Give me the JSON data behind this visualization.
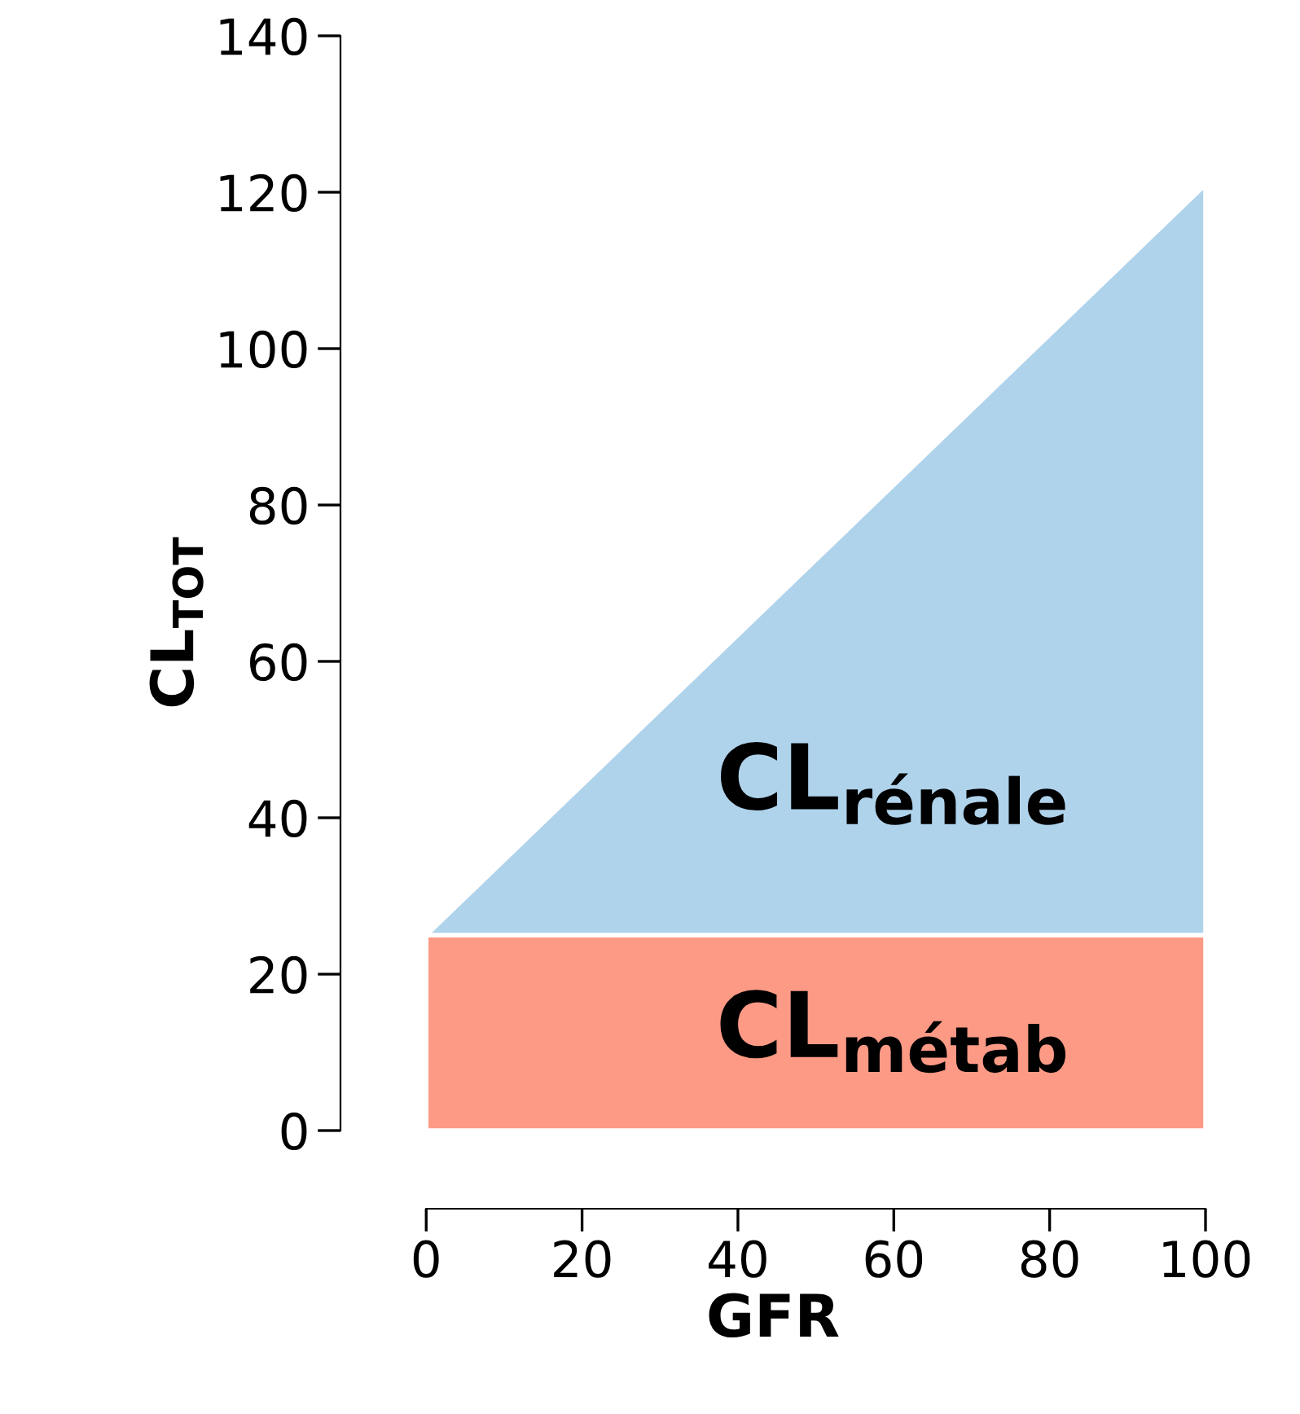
{
  "chart_data": {
    "type": "area",
    "stacked": true,
    "xlabel": "GFR",
    "ylabel": "CL$_{TOT}$",
    "x": [
      0,
      100
    ],
    "series": [
      {
        "name": "CL$_{métab}$",
        "color": "#fc9a85",
        "values": [
          25,
          25
        ]
      },
      {
        "name": "CL$_{rénale}$",
        "color": "#b0d3ec",
        "values": [
          0,
          96
        ]
      }
    ],
    "xlim": [
      -11,
      100
    ],
    "ylim": [
      -10,
      140
    ],
    "xticks": [
      0,
      20,
      40,
      60,
      80,
      100
    ],
    "yticks": [
      0,
      20,
      40,
      60,
      80,
      100,
      120,
      140
    ],
    "grid": false,
    "legend": false
  }
}
